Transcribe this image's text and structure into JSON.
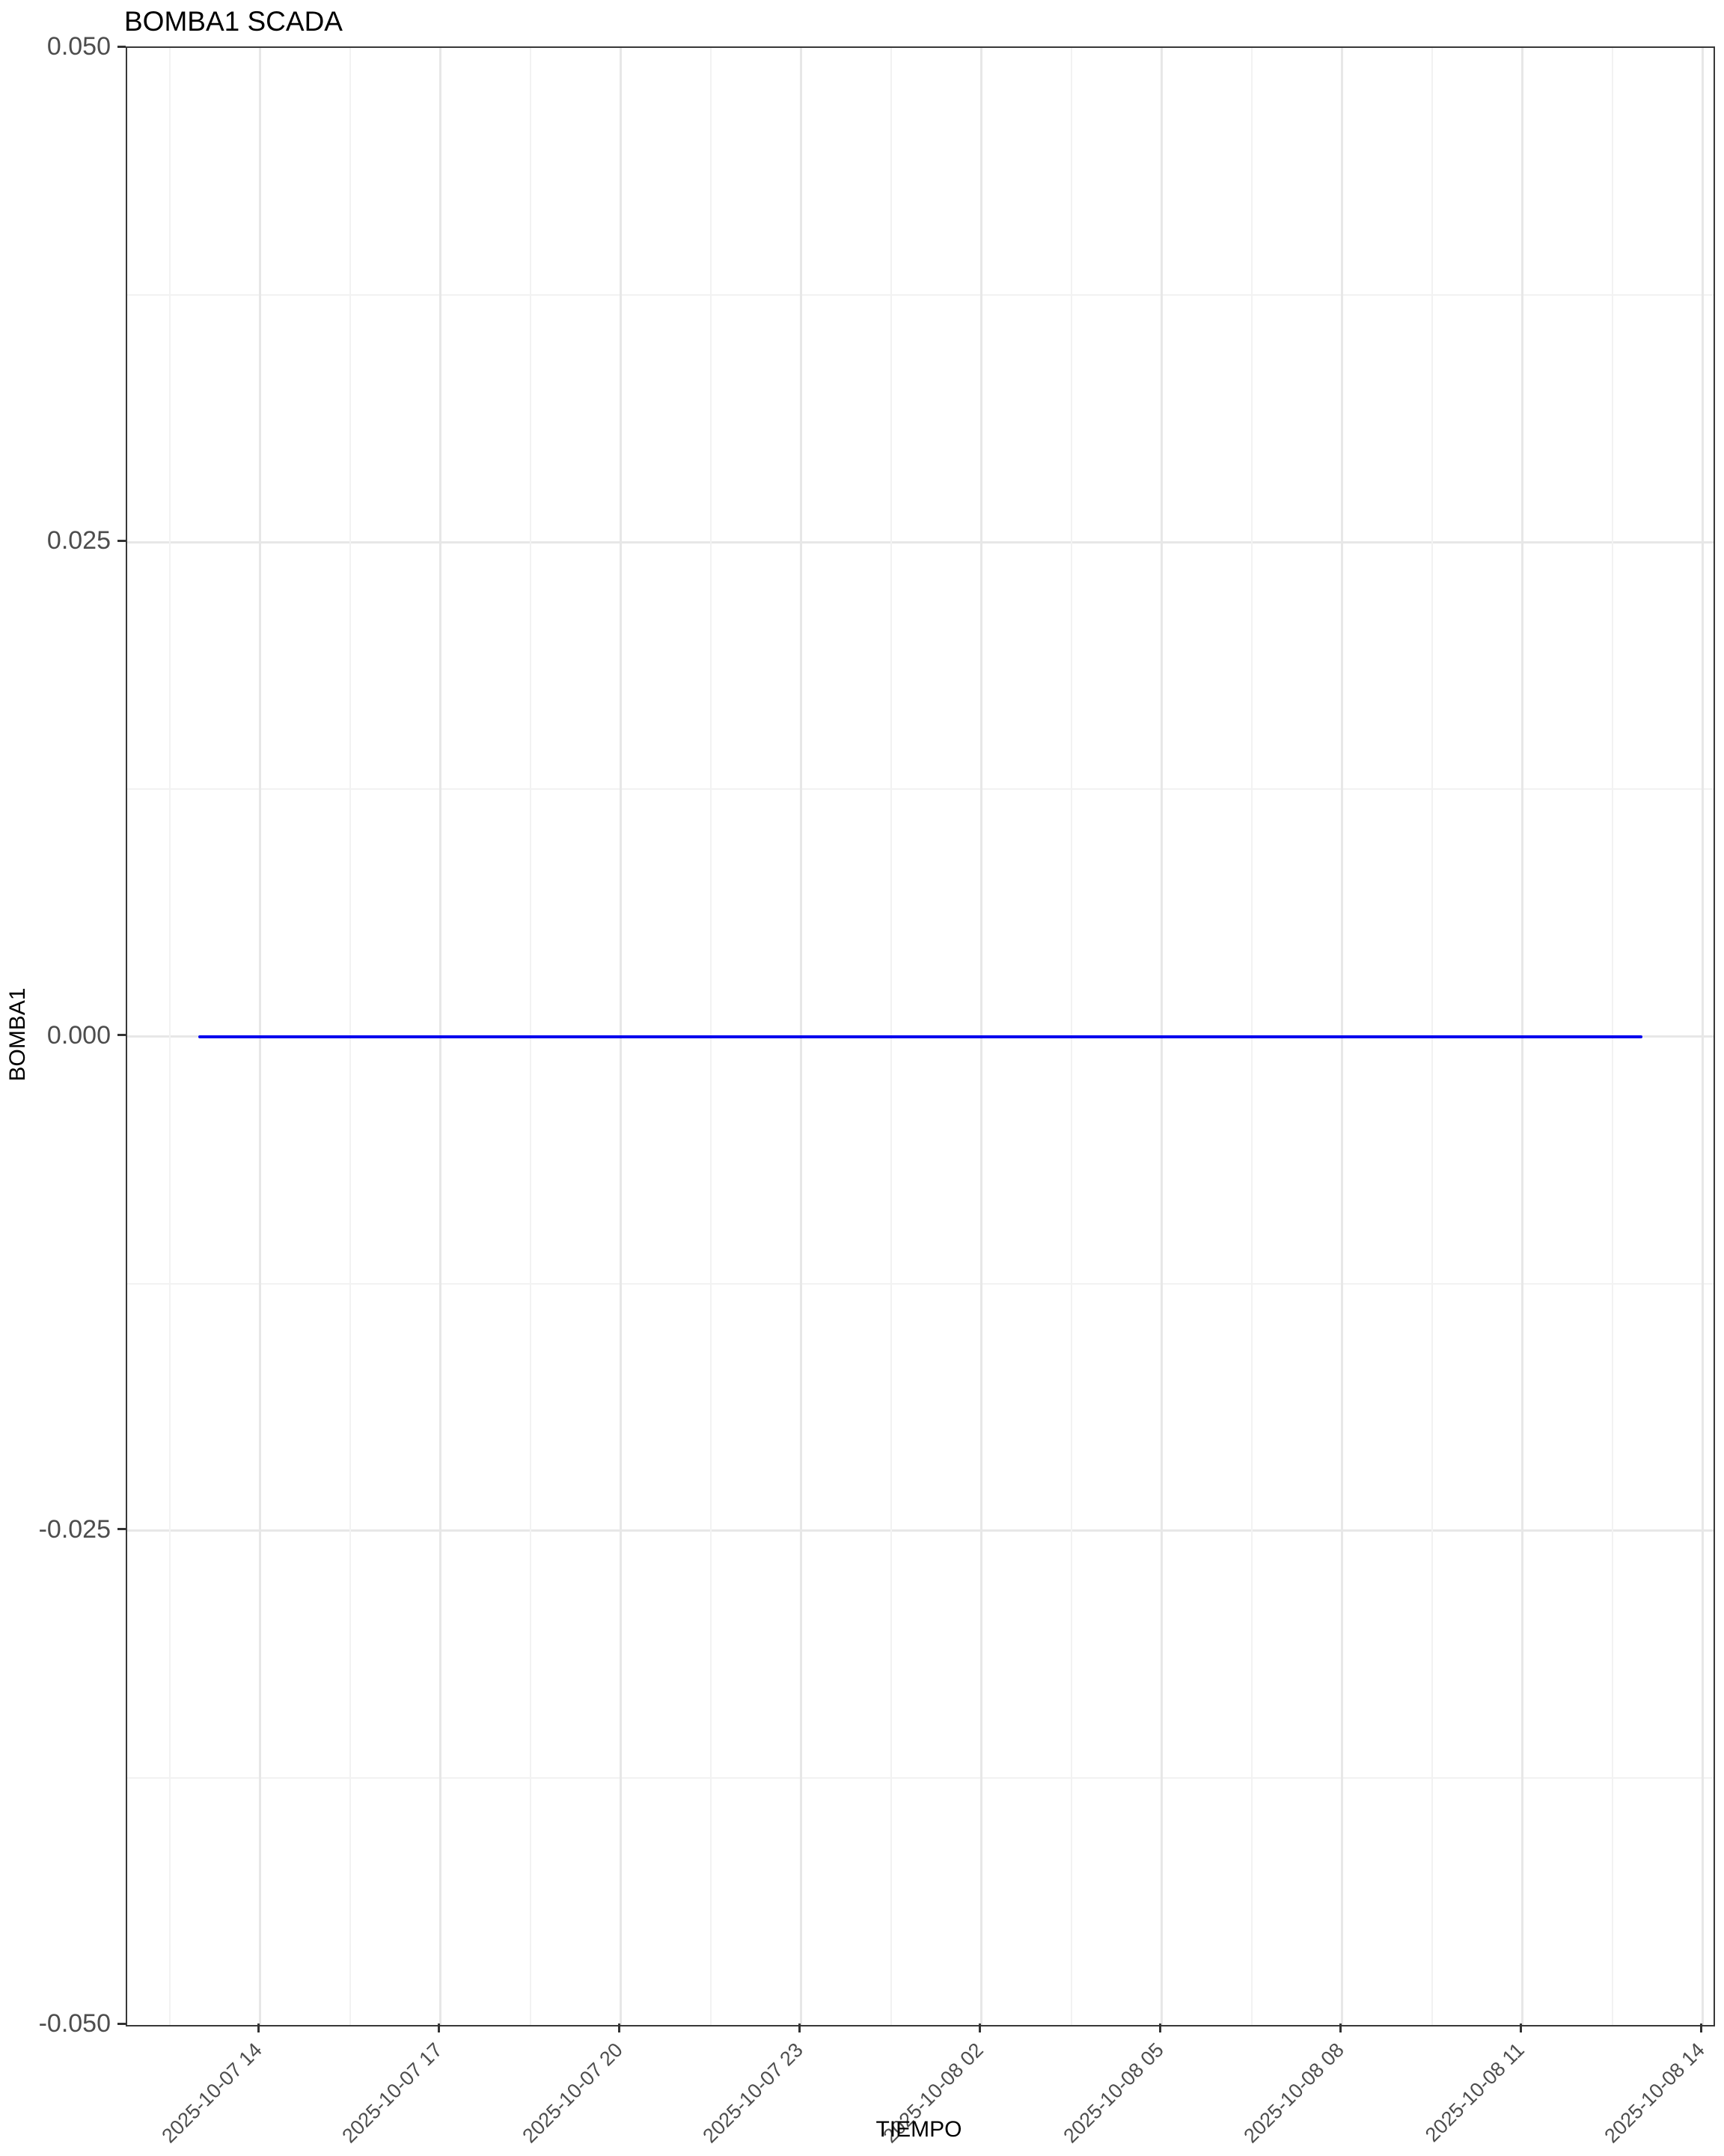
{
  "figure": {
    "title": "BOMBA1 SCADA",
    "background": "#FFFFFF"
  },
  "axes": {
    "x_title": "TIEMPO",
    "y_title": "BOMBA1",
    "x_tick_labels": [
      "2025-10-07 14",
      "2025-10-07 17",
      "2025-10-07 20",
      "2025-10-07 23",
      "2025-10-08 02",
      "2025-10-08 05",
      "2025-10-08 08",
      "2025-10-08 11",
      "2025-10-08 14"
    ],
    "y_tick_labels": [
      "0.050",
      "0.025",
      "0.000",
      "-0.025",
      "-0.050"
    ]
  },
  "chart_data": {
    "type": "line",
    "title": "BOMBA1 SCADA",
    "xlabel": "TIEMPO",
    "ylabel": "BOMBA1",
    "ylim": [
      -0.05,
      0.05
    ],
    "y_ticks": [
      0.05,
      0.025,
      0.0,
      -0.025,
      -0.05
    ],
    "x_ticks": [
      "2025-10-07 14",
      "2025-10-07 17",
      "2025-10-07 20",
      "2025-10-07 23",
      "2025-10-08 02",
      "2025-10-08 05",
      "2025-10-08 08",
      "2025-10-08 11",
      "2025-10-08 14"
    ],
    "x_tick_interval_hours": 3,
    "grid": "major+minor",
    "legend": "none",
    "series": [
      {
        "name": "BOMBA1",
        "color": "#0000EE",
        "shape": "constant-horizontal-line",
        "value": 0.0,
        "x_start": "2025-10-07 13:00",
        "x_end": "2025-10-08 13:00"
      }
    ]
  },
  "colors": {
    "line": "#0000EE",
    "tick_label": "#4D4D4D",
    "axis_text": "#000000",
    "grid_major": "#E7E7E7",
    "grid_minor": "#F2F2F2",
    "panel_border": "#383838"
  }
}
